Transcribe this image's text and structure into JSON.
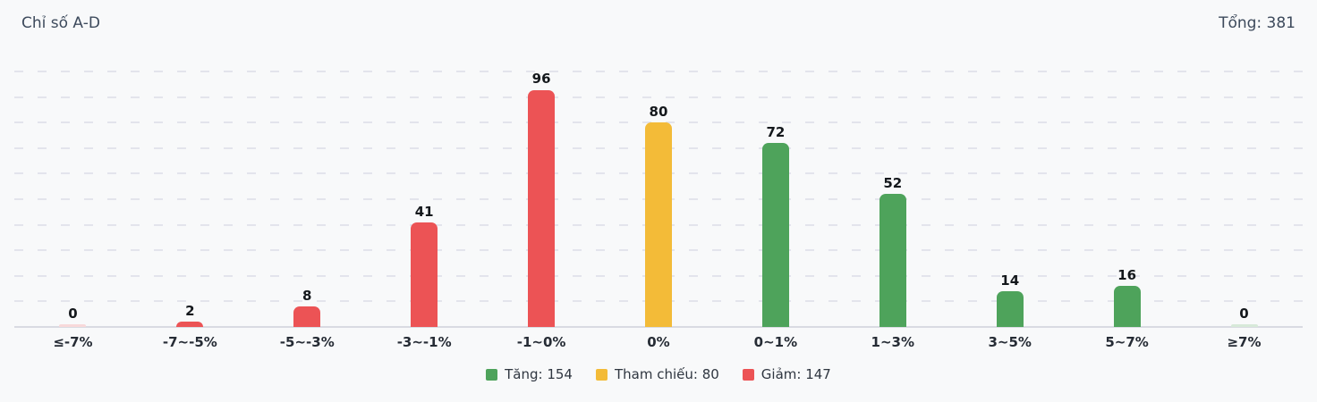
{
  "header": {
    "title": "Chỉ số A-D",
    "total": "Tổng: 381"
  },
  "chart_data": {
    "type": "bar",
    "title": "Chỉ số A-D",
    "total_shown": 381,
    "categories": [
      "≤-7%",
      "-7~-5%",
      "-5~-3%",
      "-3~-1%",
      "-1~0%",
      "0%",
      "0~1%",
      "1~3%",
      "3~5%",
      "5~7%",
      "≥7%"
    ],
    "values": [
      0,
      2,
      8,
      41,
      96,
      80,
      72,
      52,
      14,
      16,
      0
    ],
    "groups": [
      "down",
      "down",
      "down",
      "down",
      "down",
      "reference",
      "up",
      "up",
      "up",
      "up",
      "up"
    ],
    "ylim": [
      0,
      100
    ],
    "gridline_step": 10,
    "grid": "horizontal-dashed",
    "xlabel": "",
    "ylabel": "",
    "legend_position": "bottom-center",
    "legend": [
      {
        "name": "up",
        "label": "Tăng: 154",
        "color": "#4ea35b"
      },
      {
        "name": "reference",
        "label": "Tham chiếu: 80",
        "color": "#f3bb38"
      },
      {
        "name": "down",
        "label": "Giảm: 147",
        "color": "#ec5355"
      }
    ],
    "series_colors": {
      "up": "#4ea35b",
      "reference": "#f3bb38",
      "down": "#ec5355"
    },
    "zero_bar_tints": {
      "up": "#d7e9d9",
      "reference": "#fbecc8",
      "down": "#f8d9da"
    }
  },
  "colors": {
    "background": "#f8f9fa",
    "gridline": "#e3e4ec",
    "baseline": "#d9dbe2",
    "header_text": "#3d4a5c",
    "value_label": "#14181c",
    "axis_label": "#262c35"
  }
}
